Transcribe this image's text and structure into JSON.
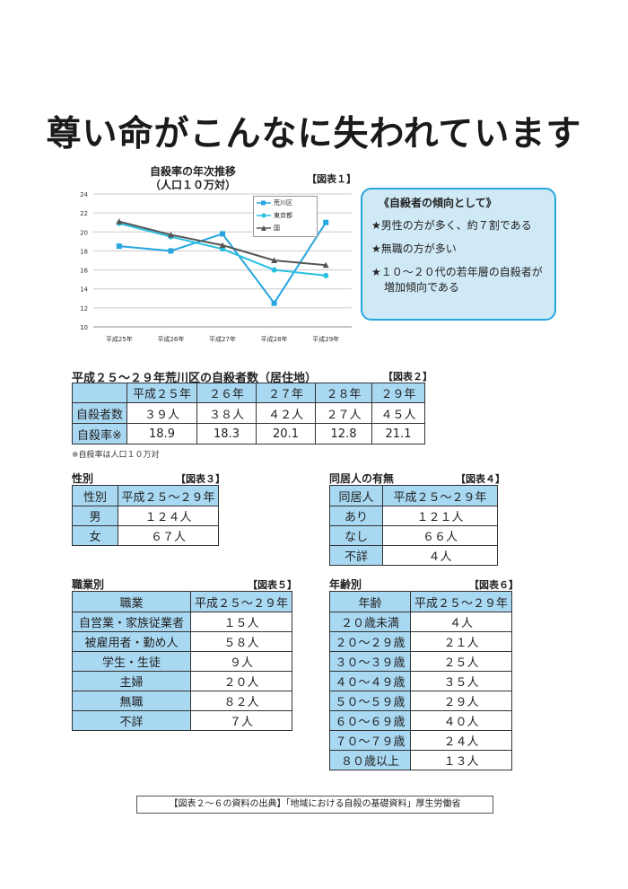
{
  "page_title": "尊い命がこんなに失われています",
  "chart": {
    "title_line1": "自殺率の年次推移",
    "title_line2": "（人口１０万対）",
    "tag": "【図表１】",
    "y_ticks": [
      "24",
      "22",
      "20",
      "18",
      "16",
      "14",
      "12",
      "10"
    ],
    "legend": [
      "荒川区",
      "東京都",
      "国"
    ]
  },
  "chart_data": {
    "type": "line",
    "title": "自殺率の年次推移（人口１０万対）",
    "categories": [
      "平成25年",
      "平成26年",
      "平成27年",
      "平成28年",
      "平成29年"
    ],
    "ylim": [
      10,
      24
    ],
    "grid": true,
    "legend_position": "top-right",
    "series": [
      {
        "name": "荒川区",
        "values": [
          18.5,
          18.0,
          19.8,
          12.5,
          21.0
        ],
        "color": "#27a6e0",
        "marker": "square"
      },
      {
        "name": "東京都",
        "values": [
          20.9,
          19.5,
          18.2,
          16.0,
          15.4
        ],
        "color": "#27c0e0",
        "marker": "circle"
      },
      {
        "name": "国",
        "values": [
          21.1,
          19.7,
          18.6,
          17.0,
          16.5
        ],
        "color": "#555555",
        "marker": "triangle"
      }
    ]
  },
  "callout": {
    "heading": "《自殺者の傾向として》",
    "items": [
      "★男性の方が多く、約７割である",
      "★無職の方が多い",
      "★１０～２０代の若年層の自殺者が増加傾向である"
    ]
  },
  "table2": {
    "title": "平成２５～２９年荒川区の自殺者数（居住地）",
    "tag": "【図表２】",
    "headers": [
      "",
      "平成２５年",
      "２６年",
      "２７年",
      "２８年",
      "２９年"
    ],
    "rows": [
      [
        "自殺者数",
        "３９人",
        "３８人",
        "４２人",
        "２７人",
        "４５人"
      ],
      [
        "自殺率※",
        "18.9",
        "18.3",
        "20.1",
        "12.8",
        "21.1"
      ]
    ],
    "note": "※自殺率は人口１０万対"
  },
  "table3": {
    "title": "性別",
    "tag": "【図表３】",
    "headers": [
      "性別",
      "平成２５～２９年"
    ],
    "rows": [
      [
        "男",
        "１２４人"
      ],
      [
        "女",
        "６７人"
      ]
    ]
  },
  "table4": {
    "title": "同居人の有無",
    "tag": "【図表４】",
    "headers": [
      "同居人",
      "平成２５～２９年"
    ],
    "rows": [
      [
        "あり",
        "１２１人"
      ],
      [
        "なし",
        "６６人"
      ],
      [
        "不詳",
        "４人"
      ]
    ]
  },
  "table5": {
    "title": "職業別",
    "tag": "【図表５】",
    "headers": [
      "職業",
      "平成２５～２９年"
    ],
    "rows": [
      [
        "自営業・家族従業者",
        "１５人"
      ],
      [
        "被雇用者・勤め人",
        "５８人"
      ],
      [
        "学生・生徒",
        "９人"
      ],
      [
        "主婦",
        "２０人"
      ],
      [
        "無職",
        "８２人"
      ],
      [
        "不詳",
        "７人"
      ]
    ]
  },
  "table6": {
    "title": "年齢別",
    "tag": "【図表６】",
    "headers": [
      "年齢",
      "平成２５～２９年"
    ],
    "rows": [
      [
        "２０歳未満",
        "４人"
      ],
      [
        "２０～２９歳",
        "２１人"
      ],
      [
        "３０～３９歳",
        "２５人"
      ],
      [
        "４０～４９歳",
        "３５人"
      ],
      [
        "５０～５９歳",
        "２９人"
      ],
      [
        "６０～６９歳",
        "４０人"
      ],
      [
        "７０～７９歳",
        "２４人"
      ],
      [
        "８０歳以上",
        "１３人"
      ]
    ]
  },
  "source": "【図表２～６の資料の出典】「地域における自殺の基礎資料」厚生労働省"
}
